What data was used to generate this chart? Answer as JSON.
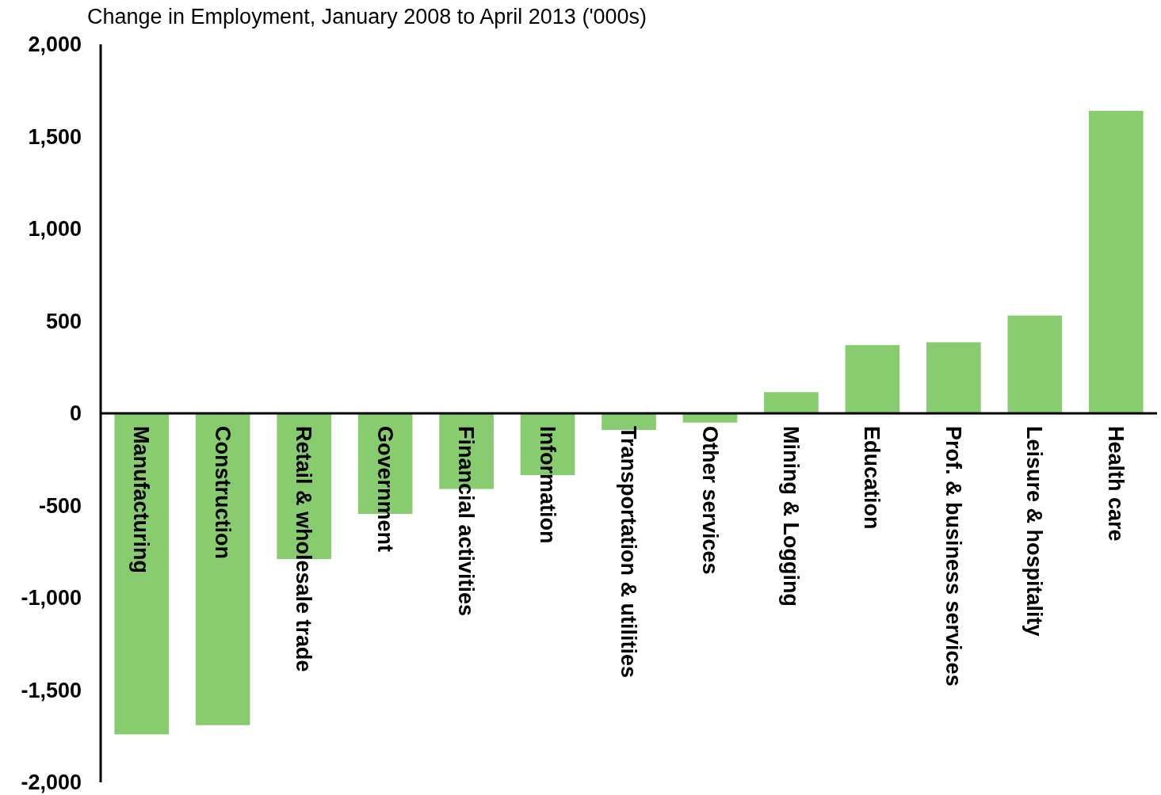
{
  "chart_data": {
    "type": "bar",
    "title": "Change in Employment, January 2008 to April 2013 ('000s)",
    "categories": [
      "Manufacturing",
      "Construction",
      "Retail & wholesale trade",
      "Government",
      "Financial activities",
      "Information",
      "Transportation & utilities",
      "Other services",
      "Mining & Logging",
      "Education",
      "Prof. & business services",
      "Leisure & hospitality",
      "Health care"
    ],
    "values": [
      -1740,
      -1690,
      -790,
      -545,
      -410,
      -335,
      -90,
      -50,
      115,
      370,
      385,
      530,
      1640
    ],
    "color": "#88cc70",
    "ylim": [
      -2000,
      2000
    ],
    "yticks": [
      {
        "value": -2000,
        "label": "-2,000"
      },
      {
        "value": -1500,
        "label": "-1,500"
      },
      {
        "value": -1000,
        "label": "-1,000"
      },
      -500,
      0,
      500,
      {
        "value": 1000,
        "label": "1,000"
      },
      {
        "value": 1500,
        "label": "1,500"
      },
      {
        "value": 2000,
        "label": "2,000"
      }
    ],
    "grid": false
  }
}
